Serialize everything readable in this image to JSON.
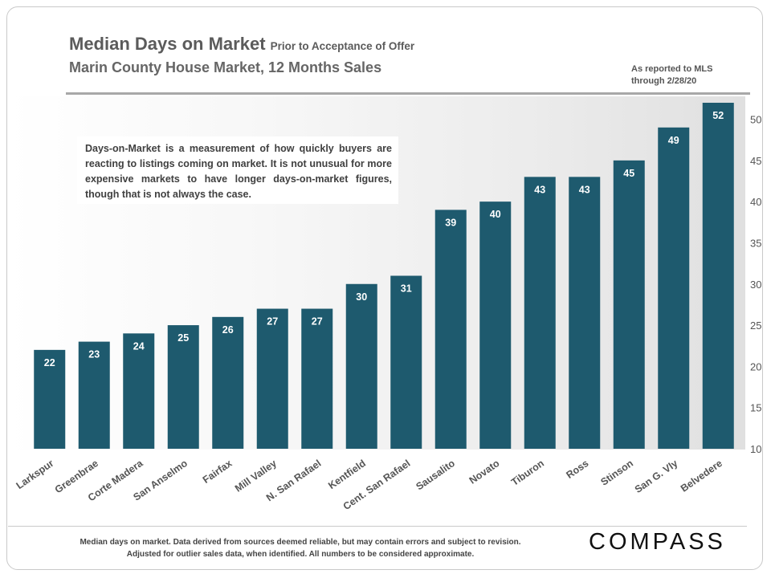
{
  "header": {
    "title": "Median Days on Market",
    "title_suffix": "Prior to Acceptance of Offer",
    "subtitle": "Marin County House Market, 12 Months Sales",
    "report_line1": "As reported to MLS",
    "report_line2": "through 2/28/20"
  },
  "note": {
    "text": "Days-on-Market is a measurement of how quickly buyers are reacting to listings coming on market. It is not unusual for more expensive markets to have longer days-on-market figures, though that is not always the case."
  },
  "footer": {
    "line1": "Median days on market. Data derived from sources deemed reliable, but may contain errors and subject to revision.",
    "line2": "Adjusted for outlier sales data, when identified.  All numbers to be considered  approximate.",
    "brand": "COMPASS"
  },
  "chart_data": {
    "type": "bar",
    "categories": [
      "Larkspur",
      "Greenbrae",
      "Corte Madera",
      "San Anselmo",
      "Fairfax",
      "Mill Valley",
      "N. San Rafael",
      "Kentfield",
      "Cent. San Rafael",
      "Sausalito",
      "Novato",
      "Tiburon",
      "Ross",
      "Stinson",
      "San G. Vly",
      "Belvedere"
    ],
    "values": [
      22,
      23,
      24,
      25,
      26,
      27,
      27,
      30,
      31,
      39,
      40,
      43,
      43,
      45,
      49,
      52
    ],
    "data_labels": [
      "22",
      "23",
      "24",
      "25",
      "26",
      "27",
      "27",
      "30",
      "31",
      "39",
      "40",
      "43",
      "43",
      "45",
      "49",
      "52"
    ],
    "ylim": [
      10,
      52
    ],
    "yticks": [
      10,
      15,
      20,
      25,
      30,
      35,
      40,
      45,
      50
    ],
    "ytick_labels": [
      "10",
      "15",
      "20",
      "25",
      "30",
      "35",
      "40",
      "45",
      "50"
    ],
    "y_axis_side": "right",
    "grid": false,
    "legend": false,
    "bar_color": "#1e5a6e",
    "label_color": "#ffffff",
    "tick_color": "#555555",
    "category_label_color": "#555555"
  }
}
